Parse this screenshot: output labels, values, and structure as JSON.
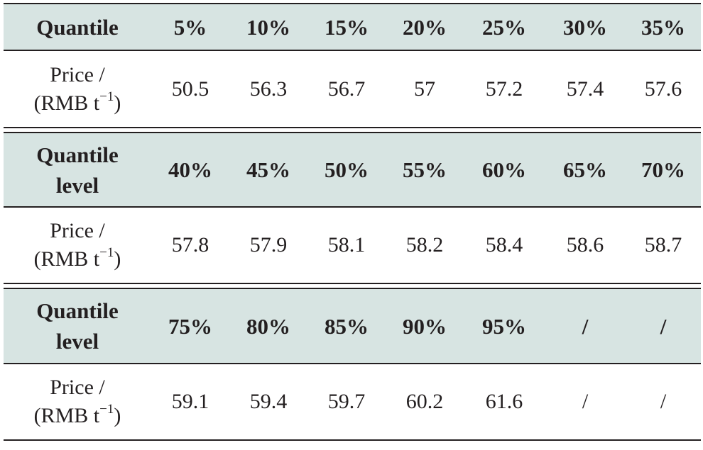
{
  "sections": [
    {
      "header_label": [
        "Quantile"
      ],
      "quantiles": [
        "5%",
        "10%",
        "15%",
        "20%",
        "25%",
        "30%",
        "35%"
      ],
      "price_label": [
        "Price /",
        "(RMB t",
        "−1",
        ")"
      ],
      "prices": [
        "50.5",
        "56.3",
        "56.7",
        "57",
        "57.2",
        "57.4",
        "57.6"
      ]
    },
    {
      "header_label": [
        "Quantile",
        "level"
      ],
      "quantiles": [
        "40%",
        "45%",
        "50%",
        "55%",
        "60%",
        "65%",
        "70%"
      ],
      "price_label": [
        "Price /",
        "(RMB t",
        "−1",
        ")"
      ],
      "prices": [
        "57.8",
        "57.9",
        "58.1",
        "58.2",
        "58.4",
        "58.6",
        "58.7"
      ]
    },
    {
      "header_label": [
        "Quantile",
        "level"
      ],
      "quantiles": [
        "75%",
        "80%",
        "85%",
        "90%",
        "95%",
        "/",
        "/"
      ],
      "price_label": [
        "Price /",
        "(RMB t",
        "−1",
        ")"
      ],
      "prices": [
        "59.1",
        "59.4",
        "59.7",
        "60.2",
        "61.6",
        "/",
        "/"
      ]
    }
  ],
  "colors": {
    "header_background": "#d7e4e2",
    "rule": "#231f20",
    "text": "#231f20"
  }
}
